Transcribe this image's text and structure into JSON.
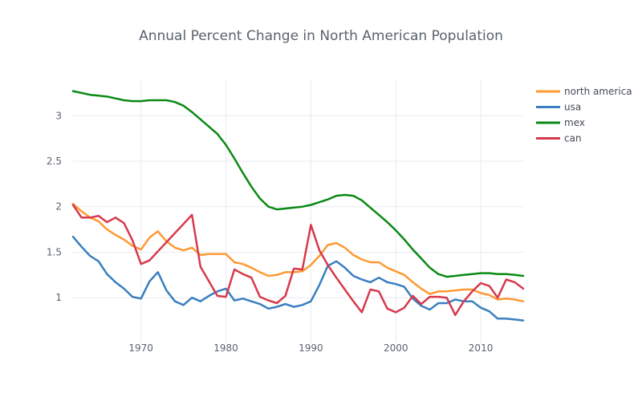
{
  "chart_data": {
    "type": "line",
    "title": "Annual Percent Change in North American Population",
    "xlabel": "",
    "ylabel": "",
    "x": [
      1962,
      1963,
      1964,
      1965,
      1966,
      1967,
      1968,
      1969,
      1970,
      1971,
      1972,
      1973,
      1974,
      1975,
      1976,
      1977,
      1978,
      1979,
      1980,
      1981,
      1982,
      1983,
      1984,
      1985,
      1986,
      1987,
      1988,
      1989,
      1990,
      1991,
      1992,
      1993,
      1994,
      1995,
      1996,
      1997,
      1998,
      1999,
      2000,
      2001,
      2002,
      2003,
      2004,
      2005,
      2006,
      2007,
      2008,
      2009,
      2010,
      2011,
      2012,
      2013,
      2014,
      2015
    ],
    "xlim": [
      1962,
      2015
    ],
    "ylim": [
      0.57,
      3.39
    ],
    "xticks": [
      1970,
      1980,
      1990,
      2000,
      2010
    ],
    "xtick_labels": [
      "1970",
      "1980",
      "1990",
      "2000",
      "2010"
    ],
    "yticks": [
      1,
      1.5,
      2,
      2.5,
      3
    ],
    "ytick_labels": [
      "1",
      "1.5",
      "2",
      "2.5",
      "3"
    ],
    "grid": true,
    "legend_position": "top-right",
    "series": [
      {
        "name": "north america",
        "color": "#ff9933",
        "values": [
          2.03,
          1.95,
          1.88,
          1.84,
          1.75,
          1.69,
          1.64,
          1.57,
          1.53,
          1.66,
          1.73,
          1.62,
          1.55,
          1.52,
          1.55,
          1.47,
          1.48,
          1.48,
          1.48,
          1.39,
          1.37,
          1.33,
          1.28,
          1.24,
          1.25,
          1.28,
          1.28,
          1.29,
          1.36,
          1.46,
          1.58,
          1.6,
          1.55,
          1.47,
          1.42,
          1.39,
          1.39,
          1.33,
          1.29,
          1.25,
          1.17,
          1.1,
          1.04,
          1.07,
          1.07,
          1.08,
          1.09,
          1.09,
          1.05,
          1.03,
          0.98,
          0.99,
          0.98,
          0.96
        ]
      },
      {
        "name": "usa",
        "color": "#3a7fc0",
        "values": [
          1.67,
          1.56,
          1.46,
          1.4,
          1.26,
          1.17,
          1.1,
          1.01,
          0.99,
          1.18,
          1.28,
          1.08,
          0.96,
          0.92,
          1.0,
          0.96,
          1.02,
          1.07,
          1.1,
          0.97,
          0.99,
          0.96,
          0.93,
          0.88,
          0.9,
          0.93,
          0.9,
          0.92,
          0.96,
          1.14,
          1.35,
          1.4,
          1.33,
          1.24,
          1.2,
          1.17,
          1.22,
          1.17,
          1.15,
          1.12,
          0.99,
          0.91,
          0.87,
          0.94,
          0.94,
          0.98,
          0.96,
          0.96,
          0.89,
          0.85,
          0.77,
          0.77,
          0.76,
          0.75
        ]
      },
      {
        "name": "mex",
        "color": "#0a8a14",
        "values": [
          3.27,
          3.25,
          3.23,
          3.22,
          3.21,
          3.19,
          3.17,
          3.16,
          3.16,
          3.17,
          3.17,
          3.17,
          3.15,
          3.11,
          3.04,
          2.96,
          2.88,
          2.8,
          2.68,
          2.53,
          2.37,
          2.22,
          2.09,
          2.0,
          1.97,
          1.98,
          1.99,
          2.0,
          2.02,
          2.05,
          2.08,
          2.12,
          2.13,
          2.12,
          2.07,
          1.99,
          1.91,
          1.83,
          1.74,
          1.64,
          1.53,
          1.43,
          1.33,
          1.26,
          1.23,
          1.24,
          1.25,
          1.26,
          1.27,
          1.27,
          1.26,
          1.26,
          1.25,
          1.24
        ]
      },
      {
        "name": "can",
        "color": "#d63a4c",
        "values": [
          2.02,
          1.88,
          1.88,
          1.9,
          1.83,
          1.88,
          1.82,
          1.63,
          1.37,
          1.41,
          1.51,
          1.61,
          1.71,
          1.81,
          1.91,
          1.34,
          1.18,
          1.02,
          1.01,
          1.31,
          1.26,
          1.22,
          1.01,
          0.97,
          0.94,
          1.02,
          1.32,
          1.31,
          1.8,
          1.52,
          1.36,
          1.22,
          1.09,
          0.96,
          0.84,
          1.09,
          1.07,
          0.88,
          0.84,
          0.89,
          1.02,
          0.93,
          1.01,
          1.01,
          1.0,
          0.81,
          0.96,
          1.07,
          1.16,
          1.13,
          1.0,
          1.2,
          1.17,
          1.1
        ]
      }
    ]
  }
}
